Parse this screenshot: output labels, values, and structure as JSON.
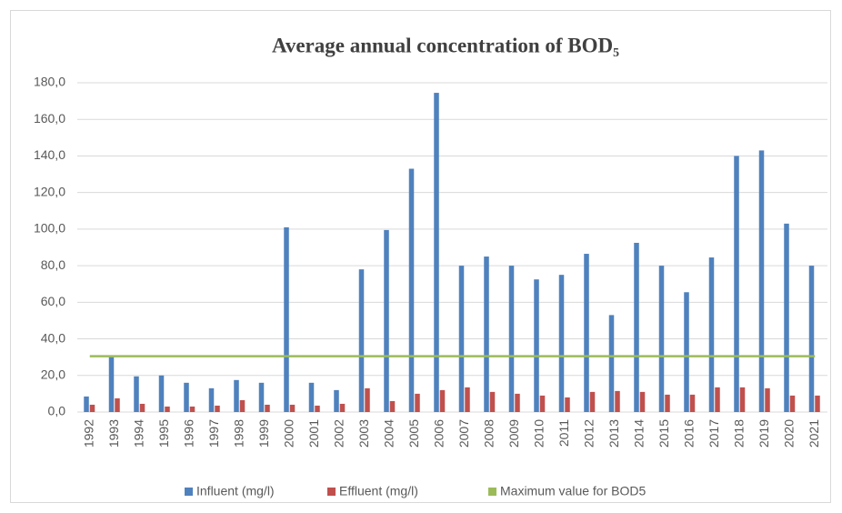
{
  "chart_data": {
    "type": "bar",
    "title": "Average annual concentration of BOD₅",
    "categories": [
      "1992",
      "1993",
      "1994",
      "1995",
      "1996",
      "1997",
      "1998",
      "1999",
      "2000",
      "2001",
      "2002",
      "2003",
      "2004",
      "2005",
      "2006",
      "2007",
      "2008",
      "2009",
      "2010",
      "2011",
      "2012",
      "2013",
      "2014",
      "2015",
      "2016",
      "2017",
      "2018",
      "2019",
      "2020",
      "2021"
    ],
    "series": [
      {
        "name": "Influent (mg/l)",
        "type": "bar",
        "color": "#4f81bd",
        "values": [
          8.5,
          30,
          19.5,
          20,
          16,
          13,
          17.5,
          16,
          101,
          16,
          12,
          78,
          99.5,
          133,
          174.5,
          80,
          85,
          80,
          72.5,
          75,
          86.5,
          53,
          92.5,
          80,
          65.5,
          84.5,
          140,
          143,
          103,
          80
        ]
      },
      {
        "name": "Effluent (mg/l)",
        "type": "bar",
        "color": "#c0504d",
        "values": [
          4,
          7.5,
          4.5,
          3,
          3,
          3.5,
          6.5,
          4,
          4,
          3.5,
          4.5,
          13,
          6,
          10,
          12,
          13.5,
          11,
          10,
          9,
          8,
          11,
          11.5,
          11,
          9.5,
          9.5,
          13.5,
          13.5,
          13,
          9,
          9
        ]
      },
      {
        "name": "Maximum value for BOD5",
        "type": "line",
        "color": "#9bbb59",
        "values": [
          30.5,
          30.5,
          30.5,
          30.5,
          30.5,
          30.5,
          30.5,
          30.5,
          30.5,
          30.5,
          30.5,
          30.5,
          30.5,
          30.5,
          30.5,
          30.5,
          30.5,
          30.5,
          30.5,
          30.5,
          30.5,
          30.5,
          30.5,
          30.5,
          30.5,
          30.5,
          30.5,
          30.5,
          30.5,
          30.5
        ]
      }
    ],
    "ylim": [
      0,
      180
    ],
    "yticks": [
      {
        "value": 0,
        "label": "0,0"
      },
      {
        "value": 20,
        "label": "20,0"
      },
      {
        "value": 40,
        "label": "40,0"
      },
      {
        "value": 60,
        "label": "60,0"
      },
      {
        "value": 80,
        "label": "80,0"
      },
      {
        "value": 100,
        "label": "100,0"
      },
      {
        "value": 120,
        "label": "120,0"
      },
      {
        "value": 140,
        "label": "140,0"
      },
      {
        "value": 160,
        "label": "160,0"
      },
      {
        "value": 180,
        "label": "180,0"
      }
    ],
    "grid": true,
    "legend": "bottom"
  }
}
